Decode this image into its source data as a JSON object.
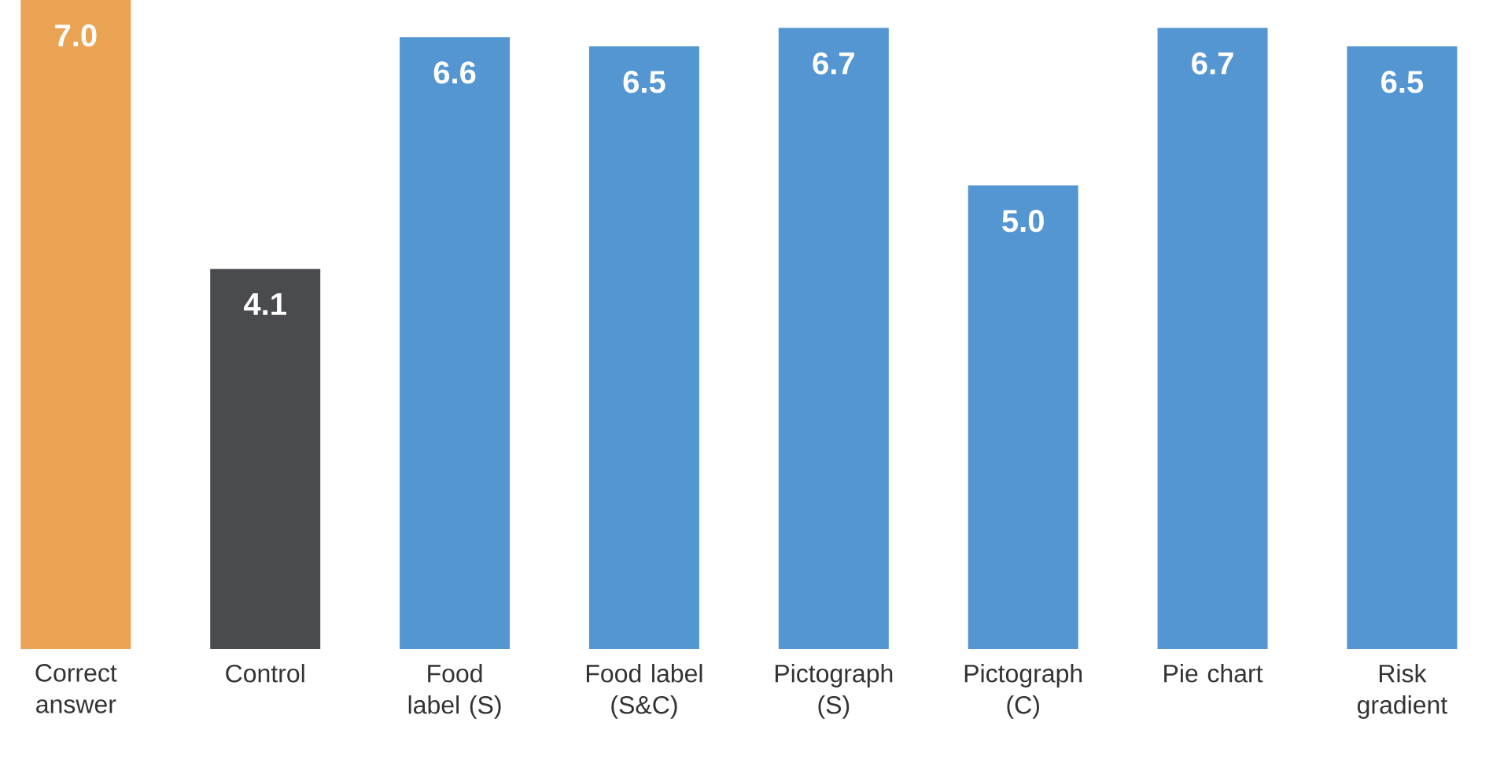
{
  "chart_data": {
    "type": "bar",
    "categories": [
      "Correct answer",
      "Control",
      "Food label (S)",
      "Food label (S&C)",
      "Pictograph (S)",
      "Pictograph (C)",
      "Pie chart",
      "Risk gradient"
    ],
    "values": [
      7.0,
      4.1,
      6.6,
      6.5,
      6.7,
      5.0,
      6.7,
      6.5
    ],
    "colors": [
      "#e9a352",
      "#4a4b4f",
      "#5496d2",
      "#5496d2",
      "#5496d2",
      "#5496d2",
      "#5496d2",
      "#5496d2"
    ],
    "data_labels": true,
    "value_labels": [
      "7.0",
      "4.1",
      "6.6",
      "6.5",
      "6.7",
      "5.0",
      "6.7",
      "6.5"
    ]
  }
}
